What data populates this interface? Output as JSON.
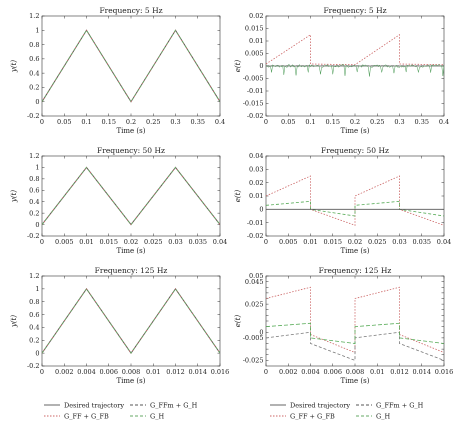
{
  "chart_data": [
    {
      "type": "line",
      "title": "Frequency: 5 Hz",
      "xlabel": "Time (s)",
      "ylabel": "y(t)",
      "xlim": [
        0,
        0.4
      ],
      "ylim": [
        -0.2,
        1.2
      ],
      "xticks": [
        0,
        0.05,
        0.1,
        0.15,
        0.2,
        0.25,
        0.3,
        0.35,
        0.4
      ],
      "xtick_labels": [
        "0",
        "0.05",
        "0.1",
        "0.15",
        "0.2",
        "0.25",
        "0.3",
        "0.35",
        "0.4"
      ],
      "yticks": [
        -0.2,
        0,
        0.2,
        0.4,
        0.6,
        0.8,
        1,
        1.2
      ],
      "ytick_labels": [
        "-0.2",
        "0",
        "0.2",
        "0.4",
        "0.6",
        "0.8",
        "1",
        "1.2"
      ],
      "grid": false,
      "series": [
        {
          "x": [
            0,
            0.1,
            0.2,
            0.3,
            0.4
          ],
          "y": [
            0,
            1,
            0,
            1,
            0
          ],
          "color": "#555555",
          "dash": "none",
          "width": 1
        },
        {
          "x": [
            0,
            0.1,
            0.2,
            0.3,
            0.4
          ],
          "y": [
            0,
            1,
            0,
            1,
            0
          ],
          "color": "#cc6666",
          "dash": "1.5,1.5",
          "width": 0.8
        },
        {
          "x": [
            0,
            0.1,
            0.2,
            0.3,
            0.4
          ],
          "y": [
            0,
            1,
            0,
            1,
            0
          ],
          "color": "#66aa66",
          "dash": "3,2",
          "width": 0.8
        }
      ]
    },
    {
      "type": "line",
      "title": "Frequency: 5 Hz",
      "xlabel": "Time (s)",
      "ylabel": "e(t)",
      "xlim": [
        0,
        0.4
      ],
      "ylim": [
        -0.02,
        0.02
      ],
      "xticks": [
        0,
        0.05,
        0.1,
        0.15,
        0.2,
        0.25,
        0.3,
        0.35,
        0.4
      ],
      "xtick_labels": [
        "0",
        "0.05",
        "0.1",
        "0.15",
        "0.2",
        "0.25",
        "0.3",
        "0.35",
        "0.4"
      ],
      "yticks": [
        -0.02,
        -0.015,
        -0.01,
        -0.005,
        0,
        0.005,
        0.01,
        0.015,
        0.02
      ],
      "ytick_labels": [
        "-0.02",
        "-0.015",
        "-0.01",
        "-0.005",
        "0",
        "0.005",
        "0.01",
        "0.015",
        "0.02"
      ],
      "grid": false,
      "series": [
        {
          "x": [
            0,
            0.1,
            0.1,
            0.2,
            0.2,
            0.3,
            0.3,
            0.4
          ],
          "y": [
            0.0008,
            0.0125,
            0.0008,
            0.0005,
            0.0005,
            0.0125,
            0.0008,
            0.0005
          ],
          "color": "#cc6666",
          "dash": "1.5,1.5",
          "width": 0.8
        },
        {
          "x": [
            0,
            0.4
          ],
          "y": [
            0,
            0
          ],
          "color": "#555555",
          "dash": "none",
          "width": 0.8
        },
        {
          "x": [
            0,
            0.4
          ],
          "y": [
            0.0002,
            0.0002
          ],
          "color": "#888888",
          "dash": "3,2",
          "width": 0.6
        },
        {
          "x": [
            0,
            0.4
          ],
          "y": [
            0,
            0
          ],
          "color": "#4a9a55",
          "dash": "none",
          "width": 0.5,
          "noise": 0.0012,
          "spikes": 0.004
        }
      ]
    },
    {
      "type": "line",
      "title": "Frequency: 50 Hz",
      "xlabel": "Time (s)",
      "ylabel": "y(t)",
      "xlim": [
        0,
        0.04
      ],
      "ylim": [
        -0.2,
        1.2
      ],
      "xticks": [
        0,
        0.005,
        0.01,
        0.015,
        0.02,
        0.025,
        0.03,
        0.035,
        0.04
      ],
      "xtick_labels": [
        "0",
        "0.005",
        "0.01",
        "0.015",
        "0.02",
        "0.025",
        "0.03",
        "0.035",
        "0.04"
      ],
      "yticks": [
        -0.2,
        0,
        0.2,
        0.4,
        0.6,
        0.8,
        1,
        1.2
      ],
      "ytick_labels": [
        "-0.2",
        "0",
        "0.2",
        "0.4",
        "0.6",
        "0.8",
        "1",
        "1.2"
      ],
      "grid": false,
      "series": [
        {
          "x": [
            0,
            0.01,
            0.02,
            0.03,
            0.04
          ],
          "y": [
            0,
            1,
            0,
            1,
            0
          ],
          "color": "#555555",
          "dash": "none",
          "width": 1
        },
        {
          "x": [
            0,
            0.01,
            0.02,
            0.03,
            0.04
          ],
          "y": [
            0,
            1,
            0,
            1,
            0
          ],
          "color": "#cc6666",
          "dash": "1.5,1.5",
          "width": 0.8
        },
        {
          "x": [
            0,
            0.01,
            0.02,
            0.03,
            0.04
          ],
          "y": [
            0,
            1,
            0,
            1,
            0
          ],
          "color": "#66aa66",
          "dash": "3,2",
          "width": 0.8
        }
      ]
    },
    {
      "type": "line",
      "title": "Frequency: 50 Hz",
      "xlabel": "Time (s)",
      "ylabel": "e(t)",
      "xlim": [
        0,
        0.04
      ],
      "ylim": [
        -0.02,
        0.04
      ],
      "xticks": [
        0,
        0.005,
        0.01,
        0.015,
        0.02,
        0.025,
        0.03,
        0.035,
        0.04
      ],
      "xtick_labels": [
        "0",
        "0.005",
        "0.01",
        "0.015",
        "0.02",
        "0.025",
        "0.03",
        "0.035",
        "0.04"
      ],
      "yticks": [
        -0.02,
        -0.01,
        0,
        0.01,
        0.02,
        0.03,
        0.04
      ],
      "ytick_labels": [
        "-0.02",
        "-0.01",
        "0",
        "0.01",
        "0.02",
        "0.03",
        "0.04"
      ],
      "grid": false,
      "series": [
        {
          "x": [
            0,
            0.01,
            0.01,
            0.02,
            0.02,
            0.03,
            0.03,
            0.04
          ],
          "y": [
            0.01,
            0.025,
            0.0,
            -0.012,
            0.01,
            0.025,
            0.0,
            -0.012
          ],
          "color": "#cc6666",
          "dash": "1.5,1.5",
          "width": 0.8
        },
        {
          "x": [
            0,
            0.01,
            0.01,
            0.02,
            0.02,
            0.03,
            0.03,
            0.04
          ],
          "y": [
            0.003,
            0.006,
            0.0,
            -0.005,
            0.003,
            0.006,
            0.0,
            -0.005
          ],
          "color": "#55aa55",
          "dash": "3,2",
          "width": 0.8
        },
        {
          "x": [
            0,
            0.04
          ],
          "y": [
            0,
            0
          ],
          "color": "#555555",
          "dash": "none",
          "width": 0.8
        }
      ]
    },
    {
      "type": "line",
      "title": "Frequency: 125 Hz",
      "xlabel": "Time (s)",
      "ylabel": "y(t)",
      "xlim": [
        0,
        0.016
      ],
      "ylim": [
        -0.2,
        1.2
      ],
      "xticks": [
        0,
        0.002,
        0.004,
        0.006,
        0.008,
        0.01,
        0.012,
        0.014,
        0.016
      ],
      "xtick_labels": [
        "0",
        "0.002",
        "0.004",
        "0.006",
        "0.008",
        "0.01",
        "0.012",
        "0.014",
        "0.016"
      ],
      "yticks": [
        -0.2,
        0,
        0.2,
        0.4,
        0.6,
        0.8,
        1,
        1.2
      ],
      "ytick_labels": [
        "-0.2",
        "0",
        "0.2",
        "0.4",
        "0.6",
        "0.8",
        "1",
        "1.2"
      ],
      "grid": false,
      "series": [
        {
          "x": [
            0,
            0.004,
            0.008,
            0.012,
            0.016
          ],
          "y": [
            0,
            1,
            0,
            1,
            0
          ],
          "color": "#555555",
          "dash": "none",
          "width": 1
        },
        {
          "x": [
            0,
            0.004,
            0.008,
            0.012,
            0.016
          ],
          "y": [
            0,
            1,
            0,
            1,
            0
          ],
          "color": "#cc6666",
          "dash": "1.5,1.5",
          "width": 0.8
        },
        {
          "x": [
            0,
            0.004,
            0.008,
            0.012,
            0.016
          ],
          "y": [
            0,
            1,
            0,
            1,
            0
          ],
          "color": "#66aa66",
          "dash": "3,2",
          "width": 0.8
        }
      ]
    },
    {
      "type": "line",
      "title": "Frequency: 125 Hz",
      "xlabel": "Time (s)",
      "ylabel": "e(t)",
      "xlim": [
        0,
        0.016
      ],
      "ylim": [
        -0.03,
        0.05
      ],
      "xticks": [
        0,
        0.002,
        0.004,
        0.006,
        0.008,
        0.01,
        0.012,
        0.014,
        0.016
      ],
      "xtick_labels": [
        "0",
        "0.002",
        "0.004",
        "0.006",
        "0.008",
        "0.01",
        "0.012",
        "0.014",
        "0.016"
      ],
      "yticks": [
        -0.025,
        -0.02,
        -0.015,
        -0.01,
        -0.005,
        0,
        0.005,
        0.01,
        0.015,
        0.02,
        0.025,
        0.03,
        0.035,
        0.04,
        0.045,
        0.05
      ],
      "ytick_labels": [
        "-0.025",
        "",
        "",
        "",
        "-0.005",
        "0",
        "",
        "",
        "",
        "",
        "0.025",
        "",
        "",
        "",
        "0.045",
        "0.05"
      ],
      "grid": false,
      "series": [
        {
          "x": [
            0,
            0.004,
            0.004,
            0.008,
            0.008,
            0.012,
            0.012,
            0.016
          ],
          "y": [
            0.03,
            0.04,
            -0.002,
            -0.018,
            0.03,
            0.04,
            -0.002,
            -0.018
          ],
          "color": "#cc6666",
          "dash": "1.5,1.5",
          "width": 0.8
        },
        {
          "x": [
            0,
            0.004,
            0.004,
            0.008,
            0.008,
            0.012,
            0.012,
            0.016
          ],
          "y": [
            -0.005,
            0.0,
            -0.01,
            -0.025,
            -0.005,
            0.0,
            -0.01,
            -0.025
          ],
          "color": "#777777",
          "dash": "3,2",
          "width": 0.8
        },
        {
          "x": [
            0,
            0.004,
            0.004,
            0.008,
            0.008,
            0.012,
            0.012,
            0.016
          ],
          "y": [
            0.005,
            0.008,
            -0.005,
            -0.01,
            0.005,
            0.008,
            -0.005,
            -0.01
          ],
          "color": "#55aa55",
          "dash": "4,2",
          "width": 0.8
        }
      ]
    }
  ],
  "legend": {
    "items": [
      {
        "label": "Desired trajectory",
        "color": "#555555",
        "dash": "none"
      },
      {
        "label": "G_FFm + G_H",
        "color": "#555555",
        "dash": "3,2"
      },
      {
        "label": "G_FF + G_FB",
        "color": "#cc6666",
        "dash": "1.5,1.5"
      },
      {
        "label": "G_H",
        "color": "#66aa66",
        "dash": "3,2"
      }
    ]
  }
}
